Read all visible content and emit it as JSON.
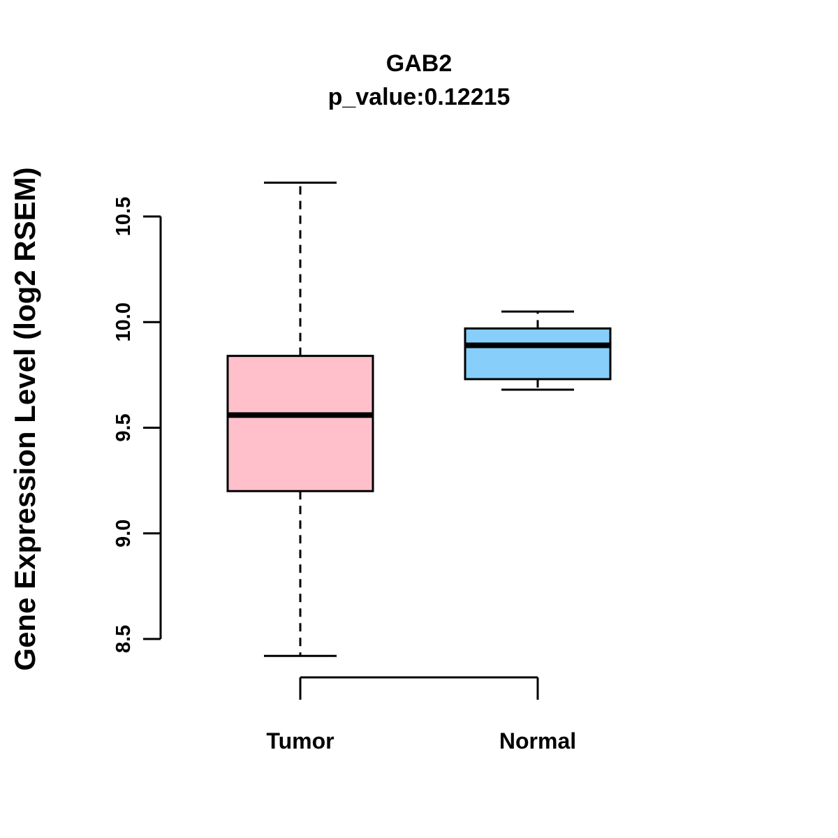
{
  "chart_data": {
    "type": "boxplot",
    "title": "GAB2",
    "subtitle": "p_value:0.12215",
    "ylabel": "Gene Expression Level (log2 RSEM)",
    "yticks": [
      8.5,
      9.0,
      9.5,
      10.0,
      10.5
    ],
    "yaxis_range": [
      8.5,
      10.5
    ],
    "categories": [
      "Tumor",
      "Normal"
    ],
    "groups": [
      {
        "label": "Tumor",
        "color": "#FFC0CB",
        "whisker_low": 8.42,
        "q1": 9.2,
        "median": 9.56,
        "q3": 9.84,
        "whisker_high": 10.66
      },
      {
        "label": "Normal",
        "color": "#87CEFA",
        "whisker_low": 9.68,
        "q1": 9.73,
        "median": 9.89,
        "q3": 9.97,
        "whisker_high": 10.05
      }
    ],
    "colors": {
      "tumor_fill": "#FFC0CB",
      "normal_fill": "#87CEFA",
      "stroke": "#000000",
      "background": "#FFFFFF"
    },
    "legend": "none",
    "grid": "off"
  }
}
